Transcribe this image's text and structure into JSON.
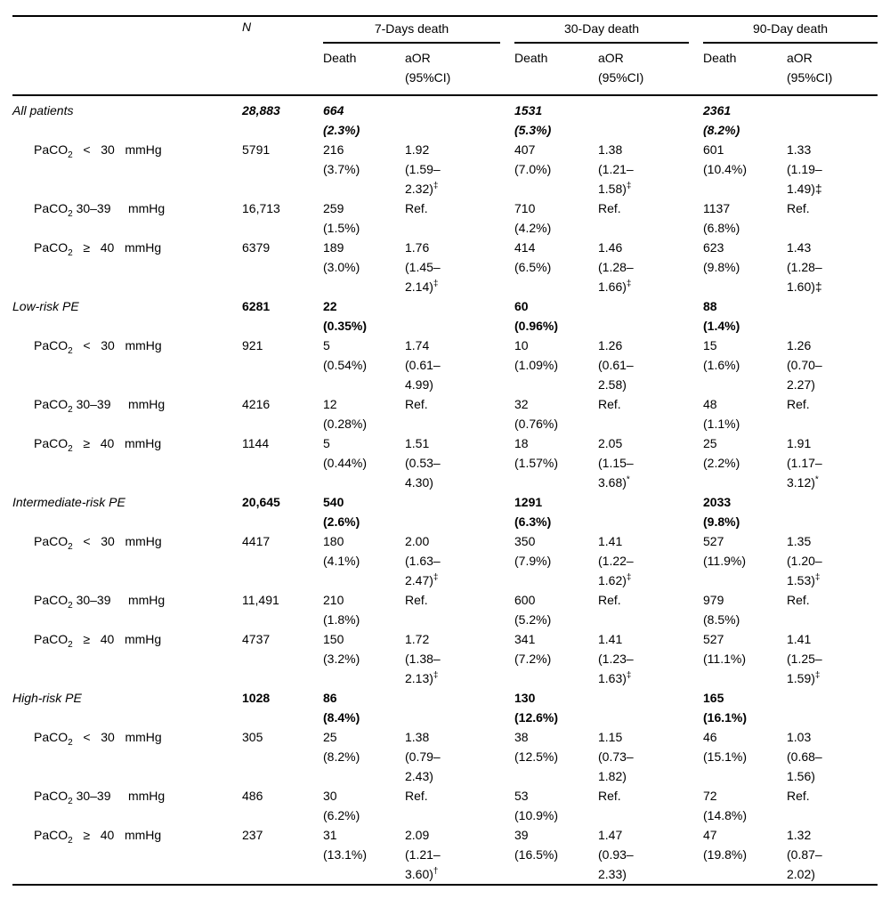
{
  "table": {
    "header": {
      "n": "N",
      "groups": [
        "7-Days death",
        "30-Day death",
        "90-Day death"
      ],
      "sub_death": "Death",
      "sub_aor": "aOR\n(95%CI)"
    },
    "sections": [
      {
        "name": "All patients",
        "n": "28,883",
        "d7": "664\n(2.3%)",
        "d30": "1531\n(5.3%)",
        "d90": "2361\n(8.2%)",
        "rows": [
          {
            "label_pre": "PaCO",
            "label_sub": "2",
            "label_rest": "   <   30   mmHg",
            "n": "5791",
            "d7_death": "216\n(3.7%)",
            "d7_aor": "1.92\n(1.59–\n2.32)",
            "d7_sup": "‡",
            "d30_death": "407\n(7.0%)",
            "d30_aor": "1.38\n(1.21–\n1.58)",
            "d30_sup": "‡",
            "d90_death": "601\n(10.4%)",
            "d90_aor": "1.33\n(1.19–\n1.49)‡",
            "d90_sup": ""
          },
          {
            "label_pre": "PaCO",
            "label_sub": "2",
            "label_rest": " 30–39     mmHg",
            "n": "16,713",
            "d7_death": "259\n(1.5%)",
            "d7_aor": "Ref.",
            "d7_sup": "",
            "d30_death": "710\n(4.2%)",
            "d30_aor": "Ref.",
            "d30_sup": "",
            "d90_death": "1137\n(6.8%)",
            "d90_aor": "Ref.",
            "d90_sup": ""
          },
          {
            "label_pre": "PaCO",
            "label_sub": "2",
            "label_rest": "   ≥   40   mmHg",
            "n": "6379",
            "d7_death": "189\n(3.0%)",
            "d7_aor": "1.76\n(1.45–\n2.14)",
            "d7_sup": "‡",
            "d30_death": "414\n(6.5%)",
            "d30_aor": "1.46\n(1.28–\n1.66)",
            "d30_sup": "‡",
            "d90_death": "623\n(9.8%)",
            "d90_aor": "1.43\n(1.28–\n1.60)‡",
            "d90_sup": ""
          }
        ]
      },
      {
        "name": "Low-risk PE",
        "n": "6281",
        "d7": "22\n(0.35%)",
        "d30": "60\n(0.96%)",
        "d90": "88\n(1.4%)",
        "rows": [
          {
            "label_pre": "PaCO",
            "label_sub": "2",
            "label_rest": "   <   30   mmHg",
            "n": "921",
            "d7_death": "5\n(0.54%)",
            "d7_aor": "1.74\n(0.61–\n4.99)",
            "d7_sup": "",
            "d30_death": "10\n(1.09%)",
            "d30_aor": "1.26\n(0.61–\n2.58)",
            "d30_sup": "",
            "d90_death": "15\n(1.6%)",
            "d90_aor": "1.26\n(0.70–\n2.27)",
            "d90_sup": ""
          },
          {
            "label_pre": "PaCO",
            "label_sub": "2",
            "label_rest": " 30–39     mmHg",
            "n": "4216",
            "d7_death": "12\n(0.28%)",
            "d7_aor": "Ref.",
            "d7_sup": "",
            "d30_death": "32\n(0.76%)",
            "d30_aor": "Ref.",
            "d30_sup": "",
            "d90_death": "48\n(1.1%)",
            "d90_aor": "Ref.",
            "d90_sup": ""
          },
          {
            "label_pre": "PaCO",
            "label_sub": "2",
            "label_rest": "   ≥   40   mmHg",
            "n": "1144",
            "d7_death": "5\n(0.44%)",
            "d7_aor": "1.51\n(0.53–\n4.30)",
            "d7_sup": "",
            "d30_death": "18\n(1.57%)",
            "d30_aor": "2.05\n(1.15–\n3.68)",
            "d30_sup": "*",
            "d90_death": "25\n(2.2%)",
            "d90_aor": "1.91\n(1.17–\n3.12)",
            "d90_sup": "*"
          }
        ]
      },
      {
        "name": "Intermediate-risk PE",
        "n": "20,645",
        "d7": "540\n(2.6%)",
        "d30": "1291\n(6.3%)",
        "d90": "2033\n(9.8%)",
        "rows": [
          {
            "label_pre": "PaCO",
            "label_sub": "2",
            "label_rest": "   <   30   mmHg",
            "n": "4417",
            "d7_death": "180\n(4.1%)",
            "d7_aor": "2.00\n(1.63–\n2.47)",
            "d7_sup": "‡",
            "d30_death": "350\n(7.9%)",
            "d30_aor": "1.41\n(1.22–\n1.62)",
            "d30_sup": "‡",
            "d90_death": "527\n(11.9%)",
            "d90_aor": "1.35\n(1.20–\n1.53)",
            "d90_sup": "‡"
          },
          {
            "label_pre": "PaCO",
            "label_sub": "2",
            "label_rest": " 30–39     mmHg",
            "n": "11,491",
            "d7_death": "210\n(1.8%)",
            "d7_aor": "Ref.",
            "d7_sup": "",
            "d30_death": "600\n(5.2%)",
            "d30_aor": "Ref.",
            "d30_sup": "",
            "d90_death": "979\n(8.5%)",
            "d90_aor": "Ref.",
            "d90_sup": ""
          },
          {
            "label_pre": "PaCO",
            "label_sub": "2",
            "label_rest": "   ≥   40   mmHg",
            "n": "4737",
            "d7_death": "150\n(3.2%)",
            "d7_aor": "1.72\n(1.38–\n2.13)",
            "d7_sup": "‡",
            "d30_death": "341\n(7.2%)",
            "d30_aor": "1.41\n(1.23–\n1.63)",
            "d30_sup": "‡",
            "d90_death": "527\n(11.1%)",
            "d90_aor": "1.41\n(1.25–\n1.59)",
            "d90_sup": "‡"
          }
        ]
      },
      {
        "name": "High-risk PE",
        "n": "1028",
        "d7": "86\n(8.4%)",
        "d30": "130\n(12.6%)",
        "d90": "165\n(16.1%)",
        "rows": [
          {
            "label_pre": "PaCO",
            "label_sub": "2",
            "label_rest": "   <   30   mmHg",
            "n": "305",
            "d7_death": "25\n(8.2%)",
            "d7_aor": "1.38\n(0.79–\n2.43)",
            "d7_sup": "",
            "d30_death": "38\n(12.5%)",
            "d30_aor": "1.15\n(0.73–\n1.82)",
            "d30_sup": "",
            "d90_death": "46\n(15.1%)",
            "d90_aor": "1.03\n(0.68–\n1.56)",
            "d90_sup": ""
          },
          {
            "label_pre": "PaCO",
            "label_sub": "2",
            "label_rest": " 30–39     mmHg",
            "n": "486",
            "d7_death": "30\n(6.2%)",
            "d7_aor": "Ref.",
            "d7_sup": "",
            "d30_death": "53\n(10.9%)",
            "d30_aor": "Ref.",
            "d30_sup": "",
            "d90_death": "72\n(14.8%)",
            "d90_aor": "Ref.",
            "d90_sup": ""
          },
          {
            "label_pre": "PaCO",
            "label_sub": "2",
            "label_rest": "   ≥   40   mmHg",
            "n": "237",
            "d7_death": "31\n(13.1%)",
            "d7_aor": "2.09\n(1.21–\n3.60)",
            "d7_sup": "†",
            "d30_death": "39\n(16.5%)",
            "d30_aor": "1.47\n(0.93–\n2.33)",
            "d30_sup": "",
            "d90_death": "47\n(19.8%)",
            "d90_aor": "1.32\n(0.87–\n2.02)",
            "d90_sup": ""
          }
        ]
      }
    ]
  }
}
